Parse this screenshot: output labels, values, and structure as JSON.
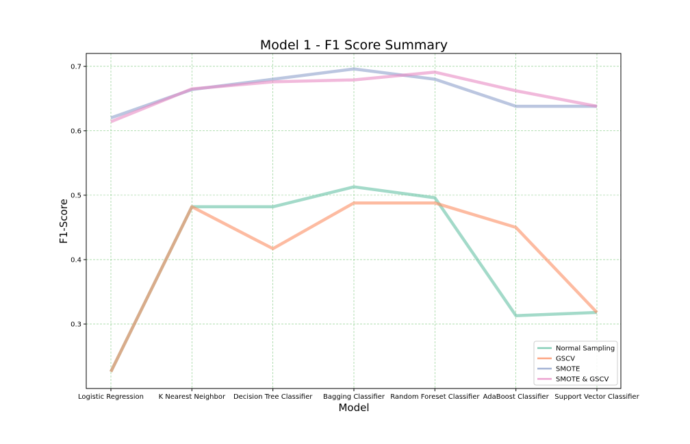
{
  "chart_data": {
    "type": "line",
    "title": "Model 1 - F1 Score Summary",
    "xlabel": "Model",
    "ylabel": "F1-Score",
    "categories": [
      "Logistic Regression",
      "K Nearest Neighbor",
      "Decision Tree Classifier",
      "Bagging Classifier",
      "Random Foreset Classifier",
      "AdaBoost Classifier",
      "Support Vector Classifier"
    ],
    "ylim": [
      0.2,
      0.72
    ],
    "yticks": [
      "0.3",
      "0.4",
      "0.5",
      "0.6",
      "0.7"
    ],
    "grid": true,
    "legend_position": "lower-right",
    "series": [
      {
        "name": "Normal Sampling",
        "color": "#66c2a5",
        "values": [
          0.226,
          0.482,
          0.482,
          0.513,
          0.496,
          0.313,
          0.318
        ]
      },
      {
        "name": "GSCV",
        "color": "#fc8d62",
        "values": [
          0.226,
          0.482,
          0.417,
          0.488,
          0.488,
          0.45,
          0.318
        ]
      },
      {
        "name": "SMOTE",
        "color": "#8da0cb",
        "values": [
          0.62,
          0.664,
          0.68,
          0.696,
          0.68,
          0.638,
          0.638
        ]
      },
      {
        "name": "SMOTE & GSCV",
        "color": "#e78ac3",
        "values": [
          0.614,
          0.665,
          0.676,
          0.679,
          0.691,
          0.662,
          0.638
        ]
      }
    ]
  }
}
